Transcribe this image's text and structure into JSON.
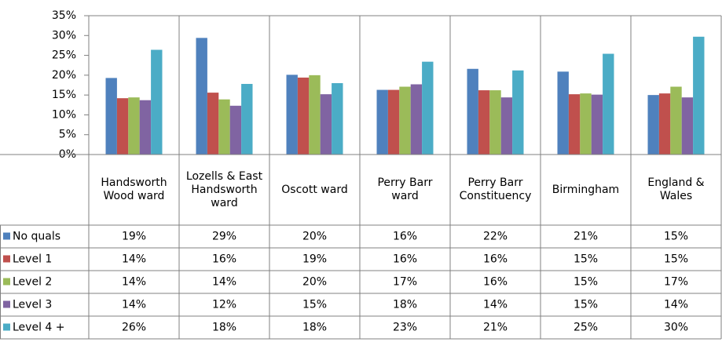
{
  "chart_data": {
    "type": "bar",
    "categories": [
      "Handsworth Wood ward",
      "Lozells & East Handsworth ward",
      "Oscott ward",
      "Perry Barr ward",
      "Perry Barr Constituency",
      "Birmingham",
      "England & Wales"
    ],
    "series": [
      {
        "name": "No quals",
        "color": "#4f81bd",
        "values": [
          19.3,
          29.4,
          20.1,
          16.3,
          21.6,
          20.9,
          15.0
        ],
        "value_labels": [
          "19%",
          "29%",
          "20%",
          "16%",
          "22%",
          "21%",
          "15%"
        ]
      },
      {
        "name": "Level 1",
        "color": "#c0504d",
        "values": [
          14.2,
          15.6,
          19.4,
          16.3,
          16.2,
          15.2,
          15.4
        ],
        "value_labels": [
          "14%",
          "16%",
          "19%",
          "16%",
          "16%",
          "15%",
          "15%"
        ]
      },
      {
        "name": "Level 2",
        "color": "#9bbb59",
        "values": [
          14.4,
          13.9,
          20.0,
          17.1,
          16.2,
          15.4,
          17.1
        ],
        "value_labels": [
          "14%",
          "14%",
          "20%",
          "17%",
          "16%",
          "15%",
          "17%"
        ]
      },
      {
        "name": "Level 3",
        "color": "#8064a2",
        "values": [
          13.7,
          12.3,
          15.2,
          17.7,
          14.4,
          15.1,
          14.4
        ],
        "value_labels": [
          "14%",
          "12%",
          "15%",
          "18%",
          "14%",
          "15%",
          "14%"
        ]
      },
      {
        "name": "Level 4 +",
        "color": "#4bacc6",
        "values": [
          26.4,
          17.8,
          18.0,
          23.4,
          21.2,
          25.4,
          29.7
        ],
        "value_labels": [
          "26%",
          "18%",
          "18%",
          "23%",
          "21%",
          "25%",
          "30%"
        ]
      }
    ],
    "ylim": [
      0,
      35
    ],
    "yticks": [
      {
        "value": 0,
        "label": "0%"
      },
      {
        "value": 5,
        "label": "5%"
      },
      {
        "value": 10,
        "label": "10%"
      },
      {
        "value": 15,
        "label": "15%"
      },
      {
        "value": 20,
        "label": "20%"
      },
      {
        "value": 25,
        "label": "25%"
      },
      {
        "value": 30,
        "label": "30%"
      },
      {
        "value": 35,
        "label": "35%"
      }
    ],
    "grid": false
  }
}
